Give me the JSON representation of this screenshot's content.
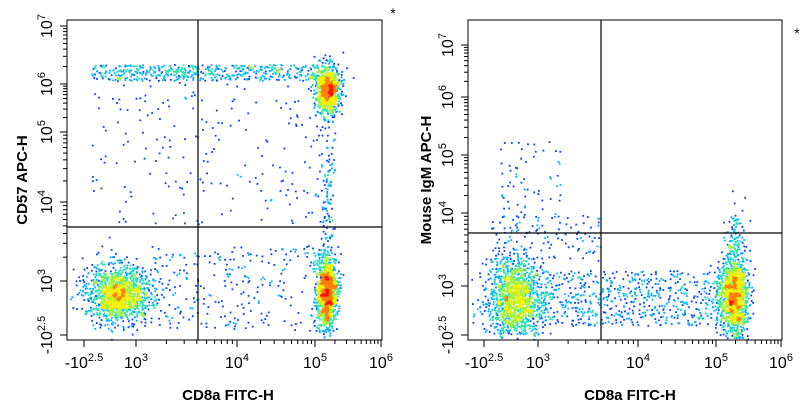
{
  "chart_data": [
    {
      "type": "scatter",
      "subtype": "flow-cytometry-density-dot-plot",
      "xlabel": "CD8a FITC-H",
      "ylabel": "CD57 APC-H",
      "annotation": "*",
      "scale": "biexponential",
      "x_ticks": [
        {
          "value": -316,
          "base": "-10",
          "exp": "2.5"
        },
        {
          "value": 1000,
          "base": "10",
          "exp": "3"
        },
        {
          "value": 10000,
          "base": "10",
          "exp": "4"
        },
        {
          "value": 100000,
          "base": "10",
          "exp": "5"
        },
        {
          "value": 1000000,
          "base": "10",
          "exp": "6"
        }
      ],
      "y_ticks": [
        {
          "value": -316,
          "base": "-10",
          "exp": "2.5"
        },
        {
          "value": 1000,
          "base": "10",
          "exp": "3"
        },
        {
          "value": 10000,
          "base": "10",
          "exp": "4"
        },
        {
          "value": 100000,
          "base": "10",
          "exp": "5"
        },
        {
          "value": 1000000,
          "base": "10",
          "exp": "6"
        },
        {
          "value": 10000000,
          "base": "10",
          "exp": "7"
        }
      ],
      "quadrant_gate": {
        "x": 3000,
        "y": 2500
      },
      "populations": [
        {
          "name": "CD8-CD57-",
          "x_center": 400,
          "y_center": 400,
          "density": "high"
        },
        {
          "name": "CD8+CD57-",
          "x_center": 180000,
          "y_center": 400,
          "density": "very high"
        },
        {
          "name": "CD8+CD57+",
          "x_center": 180000,
          "y_center": 800000,
          "density": "high"
        },
        {
          "name": "CD57+ band",
          "x_range": [
            300,
            150000
          ],
          "y_center": 1200000,
          "density": "low"
        }
      ]
    },
    {
      "type": "scatter",
      "subtype": "flow-cytometry-density-dot-plot",
      "xlabel": "CD8a FITC-H",
      "ylabel": "Mouse IgM APC-H",
      "annotation": "*",
      "scale": "biexponential",
      "x_ticks": [
        {
          "value": -316,
          "base": "-10",
          "exp": "2.5"
        },
        {
          "value": 1000,
          "base": "10",
          "exp": "3"
        },
        {
          "value": 10000,
          "base": "10",
          "exp": "4"
        },
        {
          "value": 100000,
          "base": "10",
          "exp": "5"
        },
        {
          "value": 1000000,
          "base": "10",
          "exp": "6"
        }
      ],
      "y_ticks": [
        {
          "value": -316,
          "base": "-10",
          "exp": "2.5"
        },
        {
          "value": 1000,
          "base": "10",
          "exp": "3"
        },
        {
          "value": 10000,
          "base": "10",
          "exp": "4"
        },
        {
          "value": 100000,
          "base": "10",
          "exp": "5"
        },
        {
          "value": 1000000,
          "base": "10",
          "exp": "6"
        },
        {
          "value": 10000000,
          "base": "10",
          "exp": "7"
        }
      ],
      "quadrant_gate": {
        "x": 3000,
        "y": 2500
      },
      "populations": [
        {
          "name": "CD8- IgM-",
          "x_center": 400,
          "y_center": 400,
          "density": "high"
        },
        {
          "name": "CD8+ IgM-",
          "x_center": 180000,
          "y_center": 400,
          "density": "very high"
        },
        {
          "name": "bridge",
          "x_range": [
            1000,
            100000
          ],
          "y_center": 400,
          "density": "low"
        }
      ]
    }
  ],
  "colors": {
    "density_scale": [
      "#0000cc",
      "#0040ff",
      "#00b0ff",
      "#30e0b0",
      "#a0f040",
      "#f0f000",
      "#ff8000",
      "#ff1000"
    ]
  }
}
